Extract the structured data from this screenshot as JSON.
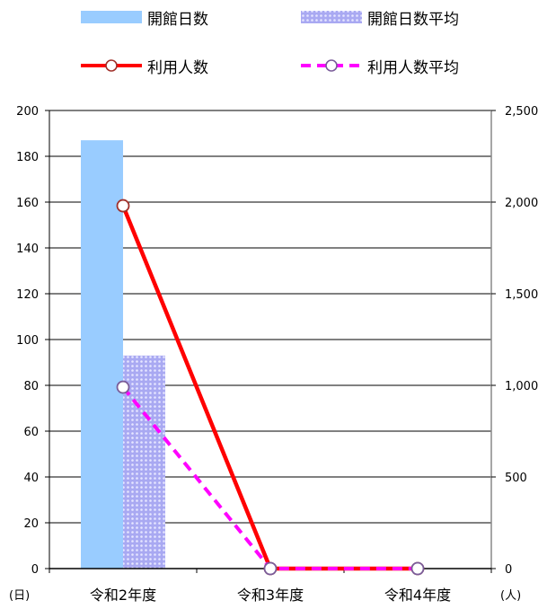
{
  "chart_data": {
    "type": "bar",
    "categories": [
      "令和2年度",
      "令和3年度",
      "令和4年度"
    ],
    "series": [
      {
        "name": "開館日数",
        "kind": "bar",
        "axis": "left",
        "color": "#99ccff",
        "values": [
          187,
          0,
          0
        ]
      },
      {
        "name": "開館日数平均",
        "kind": "bar",
        "axis": "left",
        "color": "#9999ee",
        "pattern": "dotted",
        "values": [
          93,
          0,
          0
        ]
      },
      {
        "name": "利用人数",
        "kind": "line",
        "axis": "right",
        "color": "#ff0000",
        "values": [
          1980,
          0,
          0
        ]
      },
      {
        "name": "利用人数平均",
        "kind": "line",
        "axis": "right",
        "color": "#ff00ff",
        "dashed": true,
        "values": [
          990,
          0,
          0
        ]
      }
    ],
    "y_left": {
      "min": 0,
      "max": 200,
      "step": 20,
      "ticks": [
        "0",
        "20",
        "40",
        "60",
        "80",
        "100",
        "120",
        "140",
        "160",
        "180",
        "200"
      ],
      "unit": "(日)"
    },
    "y_right": {
      "min": 0,
      "max": 2500,
      "step": 500,
      "ticks": [
        "0",
        "500",
        "1,000",
        "1,500",
        "2,000",
        "2,500"
      ],
      "unit": "(人)"
    },
    "grid": true,
    "legend": "top"
  }
}
